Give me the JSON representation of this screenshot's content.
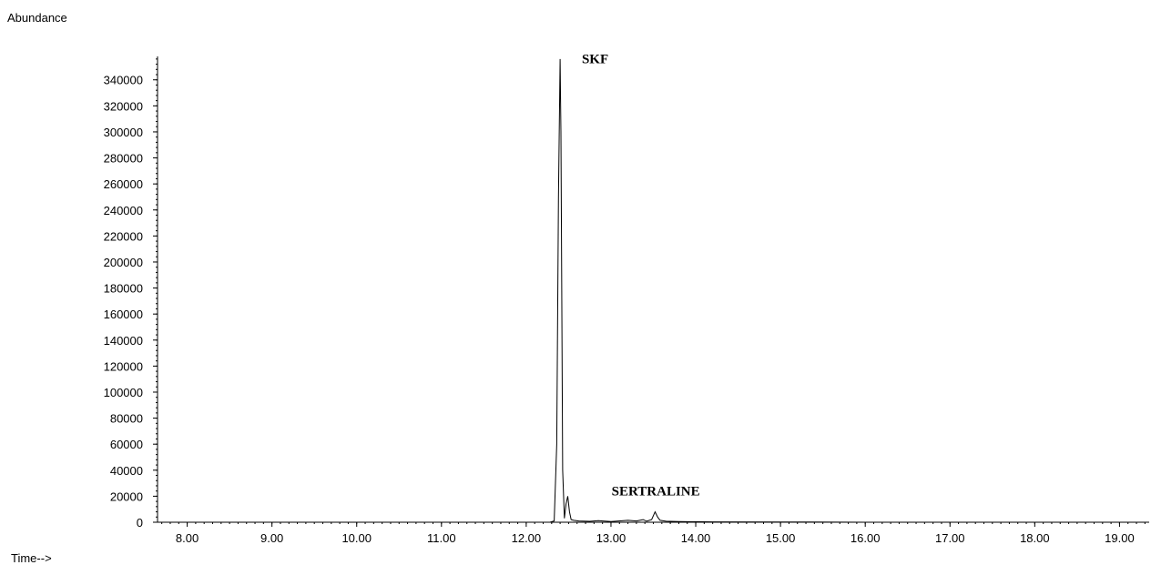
{
  "chart_data": {
    "type": "line",
    "ylabel": "Abundance",
    "xlabel": "Time-->",
    "xlim": [
      7.65,
      19.35
    ],
    "ylim": [
      0,
      358000
    ],
    "x_ticks": [
      "8.00",
      "9.00",
      "10.00",
      "11.00",
      "12.00",
      "13.00",
      "14.00",
      "15.00",
      "16.00",
      "17.00",
      "18.00",
      "19.00"
    ],
    "y_ticks": [
      "0",
      "20000",
      "40000",
      "60000",
      "80000",
      "100000",
      "120000",
      "140000",
      "160000",
      "180000",
      "200000",
      "220000",
      "240000",
      "260000",
      "280000",
      "300000",
      "320000",
      "340000"
    ],
    "annotations": [
      {
        "text": "SKF",
        "x": 12.42,
        "y": 355000
      },
      {
        "text": "SERTRALINE",
        "x": 13.55,
        "y": 22000
      }
    ],
    "series": [
      {
        "x": [
          7.65,
          12.28,
          12.33,
          12.36,
          12.38,
          12.4,
          12.41,
          12.43,
          12.45,
          12.47,
          12.49,
          12.51,
          12.53,
          12.56,
          12.62,
          12.75,
          12.85,
          13.0,
          13.2,
          13.3,
          13.38,
          13.42,
          13.48,
          13.52,
          13.55,
          13.58,
          13.65,
          13.8,
          14.2,
          15.0,
          16.0,
          19.35
        ],
        "y": [
          0,
          0,
          1000,
          60000,
          250000,
          356000,
          300000,
          40000,
          3000,
          14000,
          20000,
          8000,
          2000,
          1500,
          1000,
          700,
          1200,
          500,
          1500,
          1000,
          2000,
          800,
          2000,
          8000,
          4000,
          1500,
          800,
          500,
          300,
          200,
          0,
          0
        ]
      }
    ]
  }
}
